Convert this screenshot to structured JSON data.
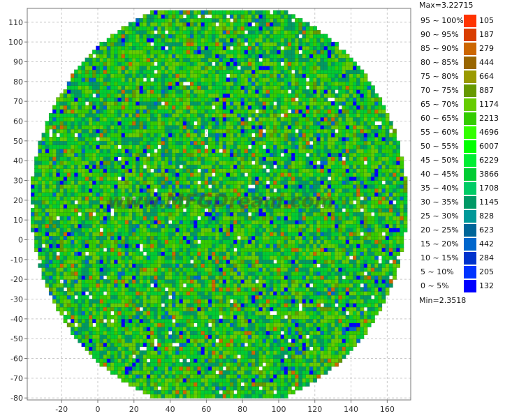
{
  "chart_data": {
    "type": "heatmap",
    "title": "",
    "xlabel": "",
    "ylabel": "",
    "xlim": [
      -39,
      173
    ],
    "ylim": [
      -81,
      117
    ],
    "x_ticks": [
      -20,
      0,
      20,
      40,
      60,
      80,
      100,
      120,
      140,
      160
    ],
    "y_ticks": [
      110,
      100,
      90,
      80,
      70,
      60,
      50,
      40,
      30,
      20,
      10,
      0,
      -10,
      -20,
      -30,
      -40,
      -50,
      -60,
      -70,
      -80
    ],
    "grid": true,
    "watermark": "www.MFGDream.com",
    "wafer": {
      "center_x": 67,
      "center_y": 18,
      "radius": 104,
      "clip_top": 116,
      "clip_bottom": -80
    },
    "max_label": "Max=3.22715",
    "min_label": "Min=2.3518",
    "legend": [
      {
        "range": "95 ~ 100%",
        "count": "105",
        "color": "#ff3300"
      },
      {
        "range": "90 ~ 95%",
        "count": "187",
        "color": "#d93d00"
      },
      {
        "range": "85 ~ 90%",
        "count": "279",
        "color": "#cc6600"
      },
      {
        "range": "80 ~ 85%",
        "count": "444",
        "color": "#996600"
      },
      {
        "range": "75 ~ 80%",
        "count": "664",
        "color": "#999900"
      },
      {
        "range": "70 ~ 75%",
        "count": "887",
        "color": "#669900"
      },
      {
        "range": "65 ~ 70%",
        "count": "1174",
        "color": "#66cc00"
      },
      {
        "range": "60 ~ 65%",
        "count": "2213",
        "color": "#33cc00"
      },
      {
        "range": "55 ~ 60%",
        "count": "4696",
        "color": "#33ff00"
      },
      {
        "range": "50 ~ 55%",
        "count": "6007",
        "color": "#00ff00"
      },
      {
        "range": "45 ~ 50%",
        "count": "6229",
        "color": "#00ee33"
      },
      {
        "range": "40 ~ 45%",
        "count": "3866",
        "color": "#00cc33"
      },
      {
        "range": "35 ~ 40%",
        "count": "1708",
        "color": "#00cc66"
      },
      {
        "range": "30 ~ 35%",
        "count": "1145",
        "color": "#009966"
      },
      {
        "range": "25 ~ 30%",
        "count": "828",
        "color": "#009999"
      },
      {
        "range": "20 ~ 25%",
        "count": "623",
        "color": "#006699"
      },
      {
        "range": "15 ~ 20%",
        "count": "442",
        "color": "#0066cc"
      },
      {
        "range": "10 ~ 15%",
        "count": "284",
        "color": "#0033cc"
      },
      {
        "range": "5 ~ 10%",
        "count": "205",
        "color": "#0033ff"
      },
      {
        "range": "0 ~ 5%",
        "count": "132",
        "color": "#0000ff"
      }
    ]
  }
}
